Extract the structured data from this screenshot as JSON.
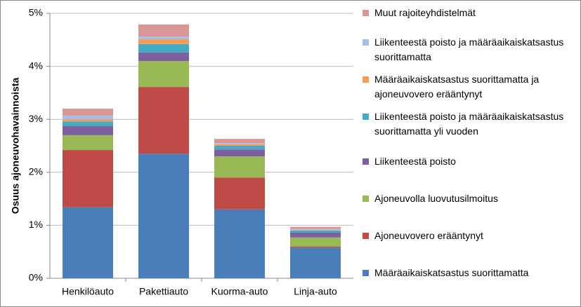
{
  "chart_data": {
    "type": "stacked_bar",
    "y_label": "Osuus ajoneuvohavainnoista",
    "categories": [
      "Henkilöauto",
      "Pakettiauto",
      "Kuorma-auto",
      "Linja-auto"
    ],
    "ylim": [
      0,
      5
    ],
    "yticks": [
      {
        "value": 0,
        "label": "0%"
      },
      {
        "value": 1,
        "label": "1%"
      },
      {
        "value": 2,
        "label": "2%"
      },
      {
        "value": 3,
        "label": "3%"
      },
      {
        "value": 4,
        "label": "4%"
      },
      {
        "value": 5,
        "label": "5%"
      }
    ],
    "grid": true,
    "legend": "right",
    "series": [
      {
        "name": "Määräaikaiskatsastus suorittamatta",
        "color": "#4a7ebb",
        "values": [
          1.34,
          2.35,
          1.3,
          0.58
        ]
      },
      {
        "name": "Ajoneuvovero erääntynyt",
        "color": "#be4b48",
        "values": [
          1.08,
          1.26,
          0.6,
          0.02
        ]
      },
      {
        "name": "Ajoneuvolla luovutusilmoitus",
        "color": "#98b954",
        "values": [
          0.28,
          0.49,
          0.4,
          0.17
        ]
      },
      {
        "name": "Liikenteestä poisto",
        "color": "#7d60a0",
        "values": [
          0.17,
          0.16,
          0.13,
          0.09
        ]
      },
      {
        "name": "Liikenteestä poisto ja määräaikaiskatsastus suorittamatta yli vuoden",
        "color": "#46aac5",
        "values": [
          0.09,
          0.16,
          0.07,
          0.04
        ]
      },
      {
        "name": "Määräaikaiskatsastus suorittamatta ja ajoneuvovero erääntynyt",
        "color": "#f59d56",
        "values": [
          0.04,
          0.09,
          0.03,
          0.01
        ]
      },
      {
        "name": "Liikenteestä poisto ja määräaikaiskatsastus suorittamatta",
        "color": "#a5bfe6",
        "values": [
          0.07,
          0.05,
          0.02,
          0.02
        ]
      },
      {
        "name": "Muut rajoiteyhdistelmät",
        "color": "#da9695",
        "values": [
          0.13,
          0.23,
          0.08,
          0.04
        ]
      }
    ]
  }
}
